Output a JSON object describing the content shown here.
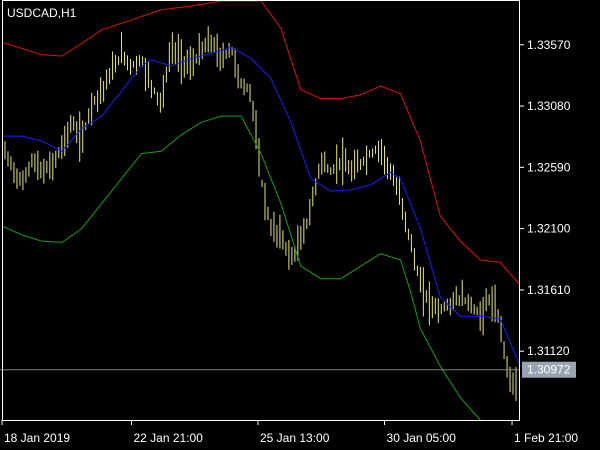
{
  "chart_window": {
    "symbol_label": "USDCAD,H1",
    "current_price_label": "1.30972",
    "colors": {
      "background": "#000000",
      "price_bars": "#e8e86a",
      "middle_line": "#1a1aff",
      "upper_band": "#e01010",
      "lower_band": "#10a010",
      "axis": "#ffffff",
      "price_line": "#808080",
      "price_box": "#9aa3b0"
    }
  },
  "chart_data": {
    "type": "line",
    "title": "USDCAD,H1",
    "xlabel": "",
    "ylabel": "",
    "ylim": [
      1.3057,
      1.3392
    ],
    "xlim": [
      0,
      520
    ],
    "current_price": 1.30972,
    "y_ticks": [
      "1.33570",
      "1.33080",
      "1.32590",
      "1.32100",
      "1.31610",
      "1.31120"
    ],
    "x_ticks": [
      {
        "label": "18 Jan 2019",
        "x": 0
      },
      {
        "label": "22 Jan 21:00",
        "x": 130
      },
      {
        "label": "25 Jan 13:00",
        "x": 257
      },
      {
        "label": "30 Jan 05:00",
        "x": 384
      },
      {
        "label": "1 Feb 21:00",
        "x": 512
      }
    ],
    "series": [
      {
        "key": "upper",
        "x": [
          0,
          20,
          40,
          60,
          80,
          100,
          130,
          160,
          190,
          220,
          240,
          260,
          280,
          300,
          320,
          340,
          360,
          380,
          400,
          420,
          440,
          460,
          480,
          500,
          520
        ],
        "values": [
          1.3359,
          1.3354,
          1.3349,
          1.3348,
          1.3358,
          1.3369,
          1.3377,
          1.3385,
          1.3388,
          1.3392,
          1.3392,
          1.3392,
          1.337,
          1.3321,
          1.3314,
          1.3314,
          1.3317,
          1.3324,
          1.3318,
          1.328,
          1.322,
          1.32,
          1.3185,
          1.3183,
          1.3165
        ]
      },
      {
        "key": "middle",
        "x": [
          0,
          20,
          40,
          60,
          80,
          100,
          120,
          140,
          150,
          170,
          190,
          210,
          230,
          250,
          270,
          290,
          310,
          330,
          350,
          370,
          390,
          400,
          420,
          440,
          460,
          480,
          500,
          520
        ],
        "values": [
          1.3284,
          1.3284,
          1.328,
          1.3272,
          1.329,
          1.33,
          1.332,
          1.334,
          1.3345,
          1.334,
          1.3346,
          1.335,
          1.3355,
          1.3346,
          1.333,
          1.3295,
          1.325,
          1.324,
          1.3241,
          1.3245,
          1.3255,
          1.325,
          1.321,
          1.3155,
          1.314,
          1.314,
          1.3138,
          1.31
        ]
      },
      {
        "key": "lower",
        "x": [
          0,
          20,
          40,
          60,
          80,
          100,
          120,
          140,
          160,
          180,
          200,
          220,
          240,
          260,
          280,
          300,
          320,
          340,
          360,
          380,
          400,
          410,
          420,
          440,
          460,
          480
        ],
        "values": [
          1.3212,
          1.3205,
          1.32,
          1.3199,
          1.321,
          1.323,
          1.325,
          1.327,
          1.3272,
          1.3285,
          1.3295,
          1.33,
          1.33,
          1.327,
          1.323,
          1.318,
          1.317,
          1.317,
          1.318,
          1.319,
          1.3185,
          1.316,
          1.313,
          1.31,
          1.3075,
          1.3057
        ]
      },
      {
        "key": "price",
        "x": [
          0,
          10,
          20,
          30,
          40,
          50,
          60,
          70,
          80,
          90,
          100,
          110,
          120,
          130,
          140,
          150,
          160,
          170,
          180,
          190,
          200,
          210,
          220,
          230,
          240,
          250,
          260,
          270,
          280,
          290,
          300,
          310,
          320,
          330,
          340,
          350,
          360,
          370,
          380,
          390,
          400,
          410,
          420,
          430,
          440,
          450,
          460,
          470,
          480,
          490,
          500,
          505,
          510,
          515,
          520
        ],
        "values": [
          1.3275,
          1.326,
          1.3245,
          1.3265,
          1.3255,
          1.326,
          1.3275,
          1.3295,
          1.328,
          1.331,
          1.332,
          1.3335,
          1.335,
          1.334,
          1.3345,
          1.3325,
          1.331,
          1.3355,
          1.3345,
          1.334,
          1.3352,
          1.336,
          1.3345,
          1.3355,
          1.3325,
          1.332,
          1.325,
          1.321,
          1.3205,
          1.3185,
          1.32,
          1.3225,
          1.3265,
          1.3255,
          1.3265,
          1.3255,
          1.3262,
          1.327,
          1.3275,
          1.3255,
          1.3235,
          1.32,
          1.3165,
          1.315,
          1.3145,
          1.315,
          1.3155,
          1.315,
          1.314,
          1.3155,
          1.3135,
          1.311,
          1.309,
          1.3085,
          1.3097
        ]
      }
    ]
  }
}
